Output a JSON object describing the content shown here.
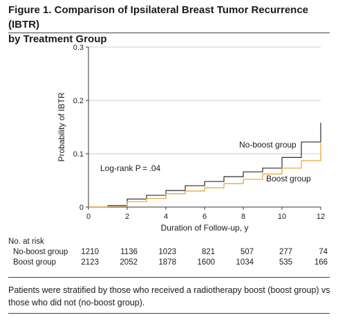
{
  "figure": {
    "title_line1": "Figure 1. Comparison of Ipsilateral Breast Tumor Recurrence (IBTR)",
    "title_line2": "by Treatment Group",
    "caption": "Patients were stratified by those who received a radiotherapy boost (boost group) vs those who did not (no-boost group)."
  },
  "colors": {
    "no_boost": "#2b2b2b",
    "boost": "#e8a030",
    "axis": "#333333",
    "grid": "#cccccc"
  },
  "chart_data": {
    "type": "line",
    "step": true,
    "xlabel": "Duration of Follow-up, y",
    "ylabel": "Probability of IBTR",
    "xlim": [
      0,
      12
    ],
    "ylim": [
      0,
      0.3
    ],
    "x_ticks": [
      0,
      2,
      4,
      6,
      8,
      10,
      12
    ],
    "y_ticks": [
      0,
      0.1,
      0.2,
      0.3
    ],
    "y_tick_labels": [
      "0",
      "0.1",
      "0.2",
      "0.3"
    ],
    "grid": true,
    "annotation": "Log-rank P = .04",
    "series": [
      {
        "name": "No-boost group",
        "x": [
          0,
          1,
          2,
          3,
          4,
          5,
          6,
          7,
          8,
          9,
          10,
          11,
          12
        ],
        "y": [
          0,
          0.003,
          0.015,
          0.022,
          0.031,
          0.04,
          0.048,
          0.057,
          0.066,
          0.073,
          0.093,
          0.122,
          0.143
        ],
        "end_y": 0.158
      },
      {
        "name": "Boost group",
        "x": [
          0,
          1,
          2,
          3,
          4,
          5,
          6,
          7,
          8,
          9,
          10,
          11,
          12
        ],
        "y": [
          0,
          0.002,
          0.01,
          0.016,
          0.025,
          0.03,
          0.036,
          0.044,
          0.052,
          0.062,
          0.073,
          0.087,
          0.097
        ],
        "end_y": 0.122
      }
    ],
    "risk_table": {
      "title": "No. at risk",
      "times": [
        0,
        2,
        4,
        6,
        8,
        10,
        12
      ],
      "rows": [
        {
          "label": "No-boost group",
          "values": [
            "1210",
            "1136",
            "1023",
            "821",
            "507",
            "277",
            "74"
          ]
        },
        {
          "label": "Boost group",
          "values": [
            "2123",
            "2052",
            "1878",
            "1600",
            "1034",
            "535",
            "166"
          ]
        }
      ]
    }
  }
}
